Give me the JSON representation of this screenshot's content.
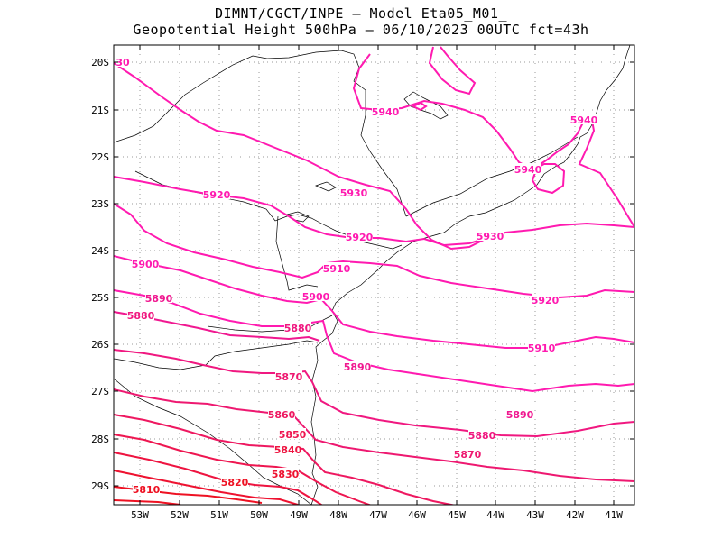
{
  "title": {
    "line1": "DIMNT/CGCT/INPE –  Model Eta05_M01_",
    "line2": "Geopotential Height 500hPa –  06/10/2023 00UTC fct=43h"
  },
  "axes": {
    "lat_labels": [
      "20S",
      "21S",
      "22S",
      "23S",
      "24S",
      "25S",
      "26S",
      "27S",
      "28S",
      "29S"
    ],
    "lon_labels": [
      "53W",
      "52W",
      "51W",
      "50W",
      "49W",
      "48W",
      "47W",
      "46W",
      "45W",
      "44W",
      "43W",
      "42W",
      "41W"
    ]
  },
  "colors": {
    "contour_high": "#ff1ab0",
    "contour_low": "#ee1122",
    "coast": "#000000",
    "grid": "#999999"
  },
  "contour_labels": [
    {
      "text": "30",
      "c": "#ff1ab0"
    },
    {
      "text": "5940",
      "c": "#ff1ab0"
    },
    {
      "text": "5940",
      "c": "#ff1ab0"
    },
    {
      "text": "5940",
      "c": "#ff1ab0"
    },
    {
      "text": "5930",
      "c": "#ff1ab0"
    },
    {
      "text": "5930",
      "c": "#ff1ab0"
    },
    {
      "text": "5920",
      "c": "#ff1ab0"
    },
    {
      "text": "5920",
      "c": "#ff1ab0"
    },
    {
      "text": "5920",
      "c": "#ff1ab0"
    },
    {
      "text": "5910",
      "c": "#ff1ab0"
    },
    {
      "text": "5910",
      "c": "#ff1ab0"
    },
    {
      "text": "5900",
      "c": "#ff1ab0"
    },
    {
      "text": "5900",
      "c": "#ff1ab0"
    },
    {
      "text": "5890",
      "c": "#f01890"
    },
    {
      "text": "5890",
      "c": "#f01890"
    },
    {
      "text": "5890",
      "c": "#f01890"
    },
    {
      "text": "5880",
      "c": "#f01880"
    },
    {
      "text": "5880",
      "c": "#f01880"
    },
    {
      "text": "5880",
      "c": "#f01880"
    },
    {
      "text": "5870",
      "c": "#ee1870"
    },
    {
      "text": "5870",
      "c": "#ee1870"
    },
    {
      "text": "5860",
      "c": "#ee1860"
    },
    {
      "text": "5850",
      "c": "#ee1650"
    },
    {
      "text": "5840",
      "c": "#ee1440"
    },
    {
      "text": "5830",
      "c": "#ee1230"
    },
    {
      "text": "5820",
      "c": "#ee1122"
    },
    {
      "text": "5810",
      "c": "#ee1122"
    }
  ]
}
